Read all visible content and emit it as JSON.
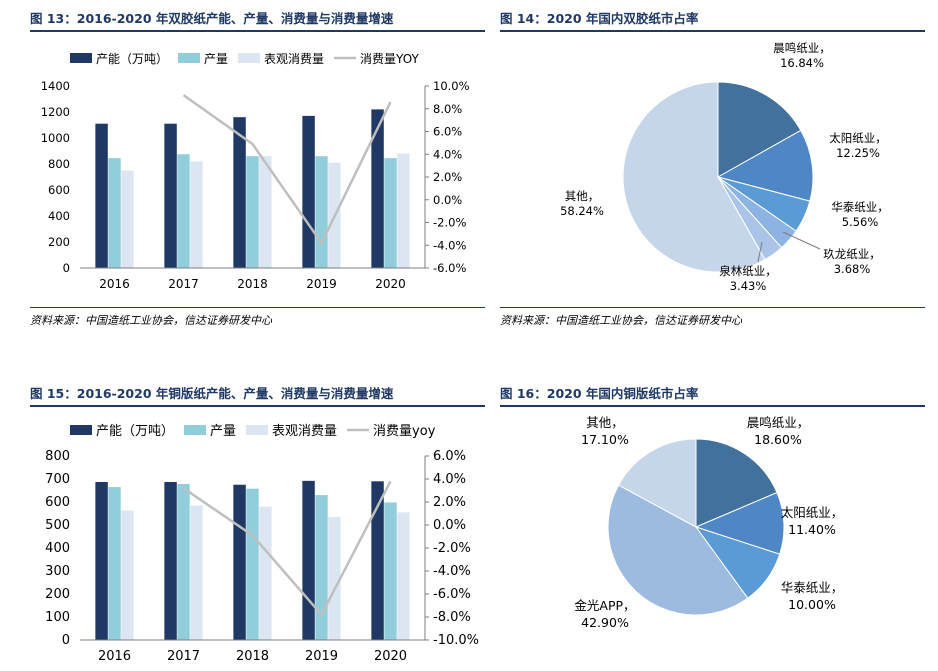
{
  "colors": {
    "title": "#1f3864",
    "capacity": "#1f3864",
    "production": "#92cddc",
    "consumption": "#dce6f2",
    "yoy_line": "#bfbfbf",
    "pie_chenming": "#41719c",
    "pie_taiyang": "#4f86c6",
    "pie_huatai": "#5b9bd5",
    "pie_jiulong": "#8db3e2",
    "pie_quanlin": "#a9c4e6",
    "pie_jinguang": "#9dbbe0",
    "pie_other": "#c5d5ea"
  },
  "fig13": {
    "title": "图 13：2016-2020 年双胶纸产能、产量、消费量与消费量增速",
    "source": "资料来源：中国造纸工业协会，信达证券研发中心",
    "chart_data": {
      "type": "bar",
      "categories": [
        "2016",
        "2017",
        "2018",
        "2019",
        "2020"
      ],
      "series": [
        {
          "name": "产能（万吨）",
          "values": [
            1110,
            1110,
            1160,
            1170,
            1220
          ]
        },
        {
          "name": "产量",
          "values": [
            845,
            875,
            860,
            860,
            845
          ]
        },
        {
          "name": "表观消费量",
          "values": [
            750,
            820,
            860,
            810,
            880
          ]
        },
        {
          "name": "消费量YOY",
          "type": "line",
          "axis": "right",
          "values": [
            null,
            9.2,
            4.9,
            -3.8,
            8.6
          ]
        }
      ],
      "ylim": [
        0,
        1400
      ],
      "yticks": [
        "0",
        "200",
        "400",
        "600",
        "800",
        "1000",
        "1200",
        "1400"
      ],
      "y2lim": [
        -6,
        10
      ],
      "y2ticks": [
        "-6.0%",
        "-4.0%",
        "-2.0%",
        "0.0%",
        "2.0%",
        "4.0%",
        "6.0%",
        "8.0%",
        "10.0%"
      ],
      "legend": "top"
    }
  },
  "fig14": {
    "title": "图 14：2020 年国内双胶纸市占率",
    "source": "资料来源：中国造纸工业协会，信达证券研发中心",
    "chart_data": {
      "type": "pie",
      "labels": [
        "晨鸣纸业",
        "太阳纸业",
        "华泰纸业",
        "玖龙纸业",
        "泉林纸业",
        "其他"
      ],
      "values": [
        16.84,
        12.25,
        5.56,
        3.68,
        3.43,
        58.24
      ],
      "value_labels": [
        "16.84%",
        "12.25%",
        "5.56%",
        "3.68%",
        "3.43%",
        "58.24%"
      ]
    }
  },
  "fig15": {
    "title": "图 15：2016-2020 年铜版纸产能、产量、消费量与消费量增速",
    "chart_data": {
      "type": "bar",
      "categories": [
        "2016",
        "2017",
        "2018",
        "2019",
        "2020"
      ],
      "series": [
        {
          "name": "产能（万吨）",
          "values": [
            687,
            687,
            675,
            692,
            690
          ]
        },
        {
          "name": "产量",
          "values": [
            665,
            678,
            658,
            630,
            598
          ]
        },
        {
          "name": "表观消费量",
          "values": [
            563,
            585,
            580,
            535,
            555
          ]
        },
        {
          "name": "消费量yoy",
          "type": "line",
          "axis": "right",
          "values": [
            null,
            3.2,
            -0.9,
            -7.8,
            3.8
          ]
        }
      ],
      "ylim": [
        0,
        800
      ],
      "yticks": [
        "0",
        "100",
        "200",
        "300",
        "400",
        "500",
        "600",
        "700",
        "800"
      ],
      "y2lim": [
        -10,
        6
      ],
      "y2ticks": [
        "-10.0%",
        "-8.0%",
        "-6.0%",
        "-4.0%",
        "-2.0%",
        "0.0%",
        "2.0%",
        "4.0%",
        "6.0%"
      ],
      "legend": "top"
    }
  },
  "fig16": {
    "title": "图 16：2020 年国内铜版纸市占率",
    "chart_data": {
      "type": "pie",
      "labels": [
        "晨鸣纸业",
        "太阳纸业",
        "华泰纸业",
        "金光APP",
        "其他"
      ],
      "values": [
        18.6,
        11.4,
        10.0,
        42.9,
        17.1
      ],
      "value_labels": [
        "18.60%",
        "11.40%",
        "10.00%",
        "42.90%",
        "17.10%"
      ]
    }
  }
}
